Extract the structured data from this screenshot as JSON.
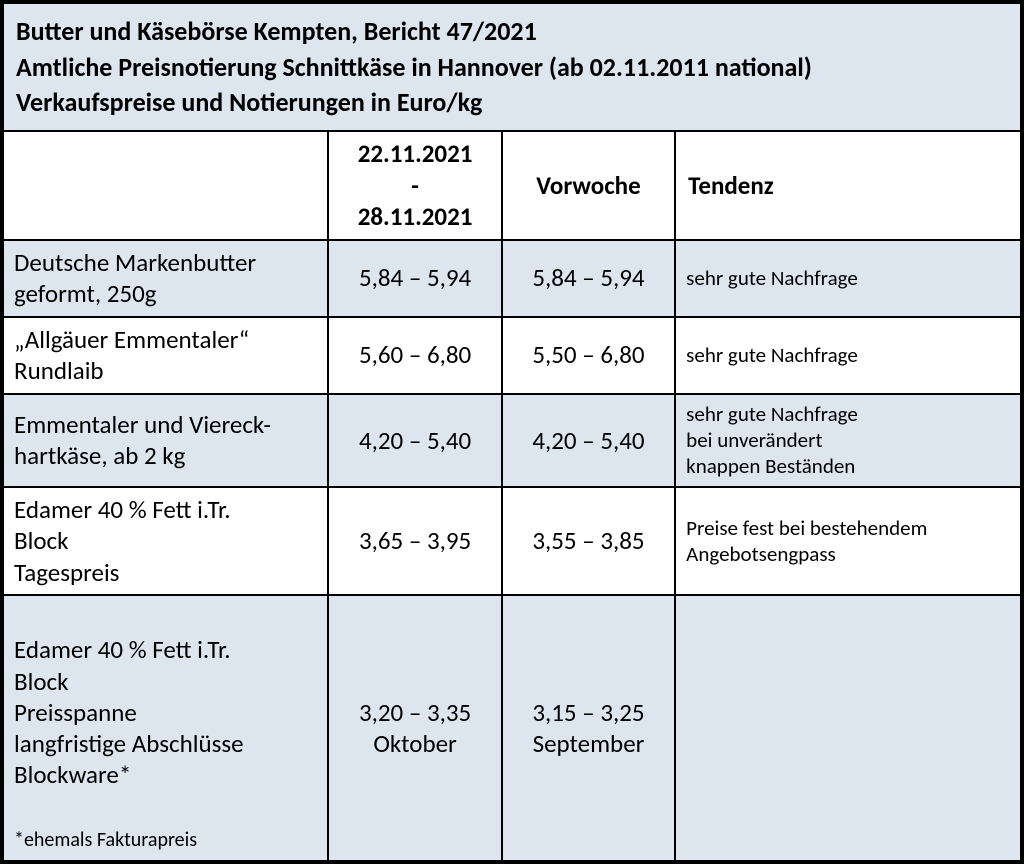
{
  "title": {
    "line1": "Butter und Käsebörse Kempten, Bericht 47/2021",
    "line2": "Amtliche Preisnotierung Schnittkäse in Hannover (ab 02.11.2011 national)",
    "line3": "Verkaufspreise und Notierungen in Euro/kg"
  },
  "colors": {
    "shade_bg": "#dde6ef",
    "white_bg": "#ffffff",
    "border": "#000000",
    "text": "#000000"
  },
  "columns": {
    "period": "22.11.2021\n-\n28.11.2021",
    "prev": "Vorwoche",
    "trend": "Tendenz"
  },
  "col_widths": {
    "name_pct": 32,
    "period_pct": 17,
    "prev_pct": 17,
    "trend_pct": 34
  },
  "rows": [
    {
      "name": "Deutsche Markenbutter\ngeformt, 250g",
      "period": "5,84 – 5,94",
      "prev": "5,84 – 5,94",
      "trend": "sehr gute Nachfrage",
      "shaded": true
    },
    {
      "name": "„Allgäuer Emmentaler“\nRundlaib",
      "period": "5,60 – 6,80",
      "prev": "5,50 – 6,80",
      "trend": "sehr gute Nachfrage",
      "shaded": false
    },
    {
      "name": "Emmentaler und Viereck-\nhartkäse, ab 2 kg",
      "period": "4,20 – 5,40",
      "prev": "4,20 – 5,40",
      "trend": "sehr gute Nachfrage\nbei unverändert\nknappen Beständen",
      "shaded": true
    },
    {
      "name": "Edamer 40 % Fett i.Tr.\nBlock\nTagespreis",
      "period": "3,65 – 3,95",
      "prev": "3,55 – 3,85",
      "trend": "Preise fest bei bestehendem\nAngebotsengpass",
      "shaded": false
    },
    {
      "name": "Edamer 40 % Fett i.Tr.\nBlock\nPreisspanne\nlangfristige Abschlüsse\nBlockware*",
      "footnote": "*ehemals Fakturapreis",
      "period": "3,20 – 3,35\nOktober",
      "prev": "3,15 – 3,25\nSeptember",
      "trend": "",
      "shaded": true
    }
  ]
}
